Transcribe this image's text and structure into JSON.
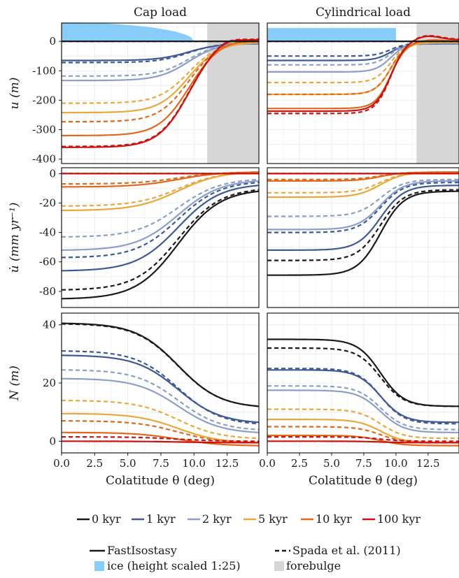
{
  "columns": [
    {
      "title": "Cap load",
      "x_label": "Colatitude θ (deg)",
      "ice_end": 10,
      "forebulge_start": 11,
      "ice_shape": "cap"
    },
    {
      "title": "Cylindrical load",
      "x_label": "Colatitude θ (deg)",
      "ice_end": 10,
      "forebulge_start": 11.6,
      "ice_shape": "cylinder"
    }
  ],
  "rows": [
    {
      "y_label": "u (m)",
      "ylim": [
        -415,
        62
      ],
      "yticks": [
        0,
        -100,
        -200,
        -300,
        -400
      ],
      "ytick_labels": [
        "0",
        "-100",
        "-200",
        "-300",
        "-400"
      ]
    },
    {
      "y_label": "u̇ (mm yr⁻¹)",
      "ylim": [
        -91,
        4
      ],
      "yticks": [
        0,
        -20,
        -40,
        -60,
        -80
      ],
      "ytick_labels": [
        "0",
        "-20",
        "-40",
        "-60",
        "-80"
      ]
    },
    {
      "y_label": "N (m)",
      "ylim": [
        -4,
        44
      ],
      "yticks": [
        40,
        20,
        0
      ],
      "ytick_labels": [
        "40",
        "20",
        "0"
      ]
    }
  ],
  "x_axis": {
    "xlim": [
      0,
      14.9
    ],
    "xticks": [
      0,
      2.5,
      5,
      7.5,
      10,
      12.5
    ],
    "xtick_labels": [
      "0.0",
      "2.5",
      "5.0",
      "7.5",
      "10.0",
      "12.5"
    ]
  },
  "legend": {
    "times": [
      {
        "label": "0 kyr",
        "color": "#1a1a1a"
      },
      {
        "label": "1 kyr",
        "color": "#3d5a94"
      },
      {
        "label": "2 kyr",
        "color": "#8c9fc9"
      },
      {
        "label": "5 kyr",
        "color": "#e8a93a"
      },
      {
        "label": "10 kyr",
        "color": "#e0691c"
      },
      {
        "label": "100 kyr",
        "color": "#cc1111"
      }
    ],
    "fastisostasy_label": "FastIsostasy",
    "spada_label": "Spada et al. (2011)",
    "ice_label": "ice (height scaled 1:25)",
    "forebulge_label": "forebulge"
  },
  "colors": {
    "ice": "#87cdf7",
    "forebulge": "#d6d6d6",
    "grid": "#ececec"
  },
  "chart_data": [
    {
      "type": "line",
      "title": "Cap load",
      "ylabel": "u (m)",
      "xlabel": "",
      "x": [
        0,
        10,
        14.9
      ],
      "series": [
        {
          "name": "0 kyr",
          "model": "FastIsostasy",
          "values": [
            0,
            0,
            0
          ]
        },
        {
          "name": "0 kyr",
          "model": "Spada et al. (2011)",
          "values": [
            0,
            0,
            0
          ]
        },
        {
          "name": "1 kyr",
          "model": "FastIsostasy",
          "values": [
            -65,
            -40,
            -8
          ]
        },
        {
          "name": "1 kyr",
          "model": "Spada et al. (2011)",
          "values": [
            -72,
            -35,
            -6
          ]
        },
        {
          "name": "2 kyr",
          "model": "FastIsostasy",
          "values": [
            -133,
            -55,
            -6
          ]
        },
        {
          "name": "2 kyr",
          "model": "Spada et al. (2011)",
          "values": [
            -118,
            -45,
            -5
          ]
        },
        {
          "name": "5 kyr",
          "model": "FastIsostasy",
          "values": [
            -242,
            -70,
            -4
          ]
        },
        {
          "name": "5 kyr",
          "model": "Spada et al. (2011)",
          "values": [
            -210,
            -60,
            -3
          ]
        },
        {
          "name": "10 kyr",
          "model": "FastIsostasy",
          "values": [
            -320,
            -80,
            -1
          ]
        },
        {
          "name": "10 kyr",
          "model": "Spada et al. (2011)",
          "values": [
            -273,
            -70,
            -1
          ]
        },
        {
          "name": "100 kyr",
          "model": "FastIsostasy",
          "values": [
            -360,
            -90,
            5
          ]
        },
        {
          "name": "100 kyr",
          "model": "Spada et al. (2011)",
          "values": [
            -357,
            -88,
            7
          ]
        }
      ]
    },
    {
      "type": "line",
      "title": "Cylindrical load",
      "ylabel": "u (m)",
      "xlabel": "",
      "x": [
        0,
        10,
        14.9
      ],
      "series": [
        {
          "name": "0 kyr",
          "model": "FastIsostasy",
          "values": [
            0,
            0,
            0
          ]
        },
        {
          "name": "0 kyr",
          "model": "Spada et al. (2011)",
          "values": [
            0,
            0,
            0
          ]
        },
        {
          "name": "1 kyr",
          "model": "FastIsostasy",
          "values": [
            -65,
            -45,
            -8
          ]
        },
        {
          "name": "1 kyr",
          "model": "Spada et al. (2011)",
          "values": [
            -50,
            -38,
            -6
          ]
        },
        {
          "name": "2 kyr",
          "model": "FastIsostasy",
          "values": [
            -104,
            -70,
            -6
          ]
        },
        {
          "name": "2 kyr",
          "model": "Spada et al. (2011)",
          "values": [
            -80,
            -55,
            -5
          ]
        },
        {
          "name": "5 kyr",
          "model": "FastIsostasy",
          "values": [
            -180,
            -110,
            -4
          ]
        },
        {
          "name": "5 kyr",
          "model": "Spada et al. (2011)",
          "values": [
            -140,
            -90,
            -3
          ]
        },
        {
          "name": "10 kyr",
          "model": "FastIsostasy",
          "values": [
            -228,
            -150,
            -1
          ]
        },
        {
          "name": "10 kyr",
          "model": "Spada et al. (2011)",
          "values": [
            -180,
            -120,
            -1
          ]
        },
        {
          "name": "100 kyr",
          "model": "FastIsostasy",
          "values": [
            -237,
            -150,
            5
          ]
        },
        {
          "name": "100 kyr",
          "model": "Spada et al. (2011)",
          "values": [
            -245,
            -140,
            7
          ]
        }
      ]
    },
    {
      "type": "line",
      "title": "",
      "ylabel": "u̇ (mm yr⁻¹)",
      "xlabel": "",
      "x": [
        0,
        10,
        14.9
      ],
      "series": [
        {
          "name": "0 kyr",
          "model": "FastIsostasy",
          "values": [
            -85,
            -33,
            -12
          ]
        },
        {
          "name": "0 kyr",
          "model": "Spada et al. (2011)",
          "values": [
            -79,
            -30,
            -11
          ]
        },
        {
          "name": "1 kyr",
          "model": "FastIsostasy",
          "values": [
            -66,
            -24,
            -8
          ]
        },
        {
          "name": "1 kyr",
          "model": "Spada et al. (2011)",
          "values": [
            -57,
            -21,
            -6
          ]
        },
        {
          "name": "2 kyr",
          "model": "FastIsostasy",
          "values": [
            -52,
            -18,
            -5
          ]
        },
        {
          "name": "2 kyr",
          "model": "Spada et al. (2011)",
          "values": [
            -43,
            -15,
            -4
          ]
        },
        {
          "name": "5 kyr",
          "model": "FastIsostasy",
          "values": [
            -25,
            -8,
            1
          ]
        },
        {
          "name": "5 kyr",
          "model": "Spada et al. (2011)",
          "values": [
            -22,
            -6,
            1
          ]
        },
        {
          "name": "10 kyr",
          "model": "FastIsostasy",
          "values": [
            -9,
            -3,
            1
          ]
        },
        {
          "name": "10 kyr",
          "model": "Spada et al. (2011)",
          "values": [
            -7,
            -2,
            1
          ]
        },
        {
          "name": "100 kyr",
          "model": "FastIsostasy",
          "values": [
            0,
            0,
            0
          ]
        },
        {
          "name": "100 kyr",
          "model": "Spada et al. (2011)",
          "values": [
            0,
            0,
            0
          ]
        }
      ]
    },
    {
      "type": "line",
      "title": "",
      "ylabel": "u̇ (mm yr⁻¹)",
      "xlabel": "",
      "x": [
        0,
        10,
        14.9
      ],
      "series": [
        {
          "name": "0 kyr",
          "model": "FastIsostasy",
          "values": [
            -69,
            -42,
            -12
          ]
        },
        {
          "name": "0 kyr",
          "model": "Spada et al. (2011)",
          "values": [
            -59,
            -35,
            -11
          ]
        },
        {
          "name": "1 kyr",
          "model": "FastIsostasy",
          "values": [
            -52,
            -30,
            -8
          ]
        },
        {
          "name": "1 kyr",
          "model": "Spada et al. (2011)",
          "values": [
            -40,
            -25,
            -6
          ]
        },
        {
          "name": "2 kyr",
          "model": "FastIsostasy",
          "values": [
            -38,
            -22,
            -5
          ]
        },
        {
          "name": "2 kyr",
          "model": "Spada et al. (2011)",
          "values": [
            -29,
            -17,
            -4
          ]
        },
        {
          "name": "5 kyr",
          "model": "FastIsostasy",
          "values": [
            -16,
            -10,
            1
          ]
        },
        {
          "name": "5 kyr",
          "model": "Spada et al. (2011)",
          "values": [
            -13,
            -8,
            1
          ]
        },
        {
          "name": "10 kyr",
          "model": "FastIsostasy",
          "values": [
            -5,
            -3,
            1
          ]
        },
        {
          "name": "10 kyr",
          "model": "Spada et al. (2011)",
          "values": [
            -4,
            -3,
            1
          ]
        },
        {
          "name": "100 kyr",
          "model": "FastIsostasy",
          "values": [
            0,
            0,
            0
          ]
        },
        {
          "name": "100 kyr",
          "model": "Spada et al. (2011)",
          "values": [
            0,
            0,
            0
          ]
        }
      ]
    },
    {
      "type": "line",
      "title": "",
      "ylabel": "N (m)",
      "xlabel": "Colatitude θ (deg)",
      "x": [
        0,
        10,
        14.9
      ],
      "series": [
        {
          "name": "0 kyr",
          "model": "FastIsostasy",
          "values": [
            40.5,
            17,
            12
          ]
        },
        {
          "name": "0 kyr",
          "model": "Spada et al. (2011)",
          "values": [
            40.3,
            15,
            12
          ]
        },
        {
          "name": "1 kyr",
          "model": "FastIsostasy",
          "values": [
            29.5,
            11,
            6.5
          ]
        },
        {
          "name": "1 kyr",
          "model": "Spada et al. (2011)",
          "values": [
            31,
            12,
            6
          ]
        },
        {
          "name": "2 kyr",
          "model": "FastIsostasy",
          "values": [
            21.5,
            7,
            3
          ]
        },
        {
          "name": "2 kyr",
          "model": "Spada et al. (2011)",
          "values": [
            24.5,
            9,
            4
          ]
        },
        {
          "name": "5 kyr",
          "model": "FastIsostasy",
          "values": [
            9.5,
            3,
            -0.5
          ]
        },
        {
          "name": "5 kyr",
          "model": "Spada et al. (2011)",
          "values": [
            14,
            5,
            1
          ]
        },
        {
          "name": "10 kyr",
          "model": "FastIsostasy",
          "values": [
            3,
            1,
            -1.5
          ]
        },
        {
          "name": "10 kyr",
          "model": "Spada et al. (2011)",
          "values": [
            7,
            2,
            -0.5
          ]
        },
        {
          "name": "100 kyr",
          "model": "FastIsostasy",
          "values": [
            0,
            0.5,
            -0.5
          ]
        },
        {
          "name": "100 kyr",
          "model": "Spada et al. (2011)",
          "values": [
            1.5,
            0.5,
            0
          ]
        }
      ]
    },
    {
      "type": "line",
      "title": "",
      "ylabel": "N (m)",
      "xlabel": "Colatitude θ (deg)",
      "x": [
        0,
        10,
        14.9
      ],
      "series": [
        {
          "name": "0 kyr",
          "model": "FastIsostasy",
          "values": [
            35,
            22,
            12
          ]
        },
        {
          "name": "0 kyr",
          "model": "Spada et al. (2011)",
          "values": [
            32,
            15,
            12
          ]
        },
        {
          "name": "1 kyr",
          "model": "FastIsostasy",
          "values": [
            24.5,
            15,
            6.5
          ]
        },
        {
          "name": "1 kyr",
          "model": "Spada et al. (2011)",
          "values": [
            25,
            15,
            6
          ]
        },
        {
          "name": "2 kyr",
          "model": "FastIsostasy",
          "values": [
            17.5,
            11,
            3
          ]
        },
        {
          "name": "2 kyr",
          "model": "Spada et al. (2011)",
          "values": [
            19,
            12,
            4
          ]
        },
        {
          "name": "5 kyr",
          "model": "FastIsostasy",
          "values": [
            7.5,
            4,
            -0.5
          ]
        },
        {
          "name": "5 kyr",
          "model": "Spada et al. (2011)",
          "values": [
            11,
            7,
            1
          ]
        },
        {
          "name": "10 kyr",
          "model": "FastIsostasy",
          "values": [
            2,
            1,
            -1.5
          ]
        },
        {
          "name": "10 kyr",
          "model": "Spada et al. (2011)",
          "values": [
            5,
            3,
            -0.5
          ]
        },
        {
          "name": "100 kyr",
          "model": "FastIsostasy",
          "values": [
            0,
            0.5,
            -0.5
          ]
        },
        {
          "name": "100 kyr",
          "model": "Spada et al. (2011)",
          "values": [
            1.5,
            0.5,
            0
          ]
        }
      ]
    }
  ]
}
